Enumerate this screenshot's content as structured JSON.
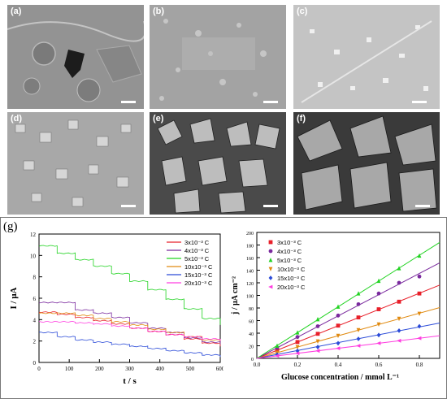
{
  "panels": {
    "a": {
      "label": "(a)"
    },
    "b": {
      "label": "(b)"
    },
    "c": {
      "label": "(c)"
    },
    "d": {
      "label": "(d)"
    },
    "e": {
      "label": "(e)"
    },
    "f": {
      "label": "(f)"
    },
    "g": {
      "label": "(g)"
    }
  },
  "chart_data": [
    {
      "type": "line",
      "xlabel": "t / s",
      "ylabel": "I / μA",
      "xlim": [
        0,
        600
      ],
      "ylim": [
        0,
        12
      ],
      "xticks": [
        "0",
        "100",
        "200",
        "300",
        "400",
        "500",
        "600"
      ],
      "yticks": [
        "0",
        "2",
        "4",
        "6",
        "8",
        "10",
        "12"
      ],
      "legend_position": "top-right",
      "series": [
        {
          "name": "3x10⁻³ C",
          "color": "#e8202a",
          "x": [
            0,
            60,
            120,
            180,
            240,
            300,
            360,
            420,
            480,
            540,
            600
          ],
          "y": [
            4.7,
            4.5,
            4.2,
            3.9,
            3.6,
            3.2,
            2.9,
            2.6,
            2.2,
            1.8,
            1.5
          ]
        },
        {
          "name": "4x10⁻³ C",
          "color": "#7a2a9e",
          "x": [
            0,
            60,
            120,
            180,
            240,
            300,
            360,
            420,
            480,
            540,
            600
          ],
          "y": [
            5.6,
            5.6,
            4.9,
            4.6,
            4.2,
            3.7,
            3.2,
            2.8,
            2.3,
            1.9,
            1.7
          ]
        },
        {
          "name": "5x10⁻³ C",
          "color": "#22d322",
          "x": [
            0,
            60,
            120,
            180,
            240,
            300,
            360,
            420,
            480,
            540,
            600
          ],
          "y": [
            10.9,
            10.2,
            9.6,
            9.0,
            8.3,
            7.6,
            6.8,
            5.9,
            5.0,
            4.1,
            3.5
          ]
        },
        {
          "name": "10x10⁻³ C",
          "color": "#e08a10",
          "x": [
            0,
            60,
            120,
            180,
            240,
            300,
            360,
            420,
            480,
            540,
            600
          ],
          "y": [
            4.6,
            4.6,
            4.4,
            4.1,
            3.8,
            3.5,
            3.1,
            2.8,
            2.4,
            2.1,
            2.0
          ]
        },
        {
          "name": "15x10⁻³ C",
          "color": "#2b4bd8",
          "x": [
            0,
            60,
            120,
            180,
            240,
            300,
            360,
            420,
            480,
            540,
            600
          ],
          "y": [
            2.8,
            2.4,
            2.1,
            1.9,
            1.7,
            1.5,
            1.3,
            1.1,
            0.9,
            0.7,
            0.5
          ]
        },
        {
          "name": "20x10⁻³ C",
          "color": "#ff3ee0",
          "x": [
            0,
            60,
            120,
            180,
            240,
            300,
            360,
            420,
            480,
            540,
            600
          ],
          "y": [
            3.8,
            3.8,
            3.7,
            3.6,
            3.4,
            3.2,
            2.9,
            2.6,
            2.4,
            2.2,
            2.0
          ]
        }
      ]
    },
    {
      "type": "scatter",
      "xlabel": "Glucose concentration / mmol L⁻¹",
      "ylabel": "j / μA cm⁻²",
      "xlim": [
        0,
        0.9
      ],
      "ylim": [
        0,
        200
      ],
      "xticks": [
        "0.0",
        "0.2",
        "0.4",
        "0.6",
        "0.8"
      ],
      "yticks": [
        "0",
        "20",
        "40",
        "60",
        "80",
        "100",
        "120",
        "140",
        "160",
        "180",
        "200"
      ],
      "legend_position": "top-left",
      "series": [
        {
          "name": "3x10⁻³ C",
          "color": "#e8202a",
          "marker": "square",
          "x": [
            0.1,
            0.2,
            0.3,
            0.4,
            0.5,
            0.6,
            0.7,
            0.8
          ],
          "y": [
            13,
            26,
            39,
            52,
            65,
            78,
            90,
            103
          ]
        },
        {
          "name": "4x10⁻³ C",
          "color": "#7a2a9e",
          "marker": "circle",
          "x": [
            0.1,
            0.2,
            0.3,
            0.4,
            0.5,
            0.6,
            0.7,
            0.8
          ],
          "y": [
            17,
            34,
            51,
            68,
            86,
            103,
            120,
            130
          ]
        },
        {
          "name": "5x10⁻³ C",
          "color": "#22d322",
          "marker": "triangle-up",
          "x": [
            0.1,
            0.2,
            0.3,
            0.4,
            0.5,
            0.6,
            0.7,
            0.8
          ],
          "y": [
            20,
            41,
            62,
            82,
            103,
            123,
            143,
            163
          ]
        },
        {
          "name": "10x10⁻³ C",
          "color": "#e08a10",
          "marker": "triangle-down",
          "x": [
            0.1,
            0.2,
            0.3,
            0.4,
            0.5,
            0.6,
            0.7,
            0.8
          ],
          "y": [
            9,
            18,
            27,
            36,
            45,
            54,
            63,
            71
          ]
        },
        {
          "name": "15x10⁻³ C",
          "color": "#2b4bd8",
          "marker": "diamond",
          "x": [
            0.1,
            0.2,
            0.3,
            0.4,
            0.5,
            0.6,
            0.7,
            0.8
          ],
          "y": [
            6,
            12,
            18,
            24,
            31,
            37,
            44,
            51
          ]
        },
        {
          "name": "20x10⁻³ C",
          "color": "#ff3ee0",
          "marker": "triangle-left",
          "x": [
            0.1,
            0.2,
            0.3,
            0.4,
            0.5,
            0.6,
            0.7,
            0.8
          ],
          "y": [
            4,
            8,
            12,
            16,
            20,
            24,
            28,
            32
          ]
        }
      ]
    }
  ]
}
